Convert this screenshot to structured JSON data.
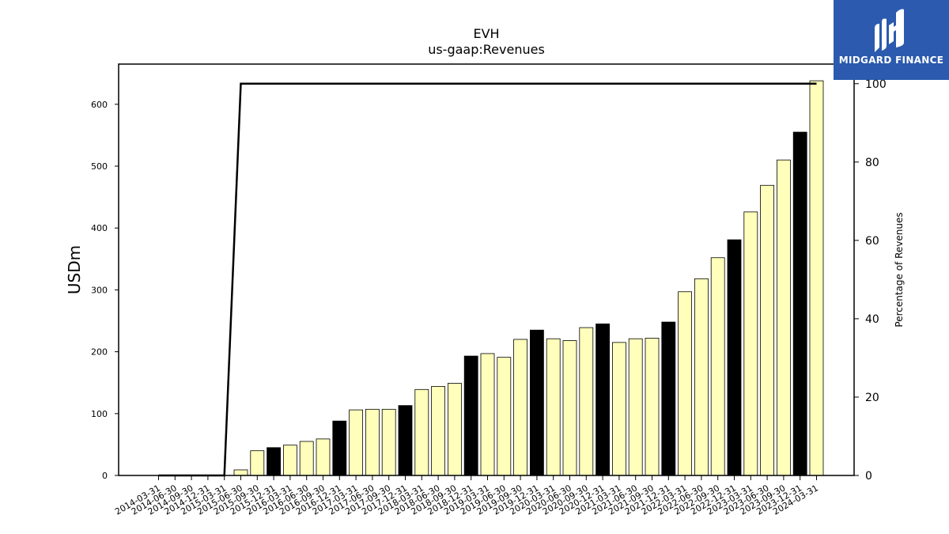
{
  "chart_data": {
    "type": "bar",
    "title": "EVH",
    "subtitle": "us-gaap:Revenues",
    "ylabel": "USDm",
    "y2label": "Percentage of Revenues",
    "ylim": [
      0,
      665
    ],
    "y2lim": [
      0,
      105
    ],
    "yticks": [
      0,
      100,
      200,
      300,
      400,
      500,
      600
    ],
    "y2ticks": [
      0,
      20,
      40,
      60,
      80,
      100
    ],
    "categories": [
      "2014-03-31",
      "2014-06-30",
      "2014-09-30",
      "2014-12-31",
      "2015-03-31",
      "2015-06-30",
      "2015-09-30",
      "2015-12-31",
      "2016-03-31",
      "2016-06-30",
      "2016-09-30",
      "2016-12-31",
      "2017-03-31",
      "2017-06-30",
      "2017-09-30",
      "2017-12-31",
      "2018-03-31",
      "2018-06-30",
      "2018-09-30",
      "2018-12-31",
      "2019-03-31",
      "2019-06-30",
      "2019-09-30",
      "2019-12-31",
      "2020-03-31",
      "2020-06-30",
      "2020-09-30",
      "2020-12-31",
      "2021-03-31",
      "2021-06-30",
      "2021-09-30",
      "2021-12-31",
      "2022-03-31",
      "2022-06-30",
      "2022-09-30",
      "2022-12-31",
      "2023-03-31",
      "2023-06-30",
      "2023-09-30",
      "2023-12-31",
      "2024-03-31"
    ],
    "series": [
      {
        "type": "bar",
        "values": [
          0,
          0,
          0,
          0,
          0,
          9,
          40,
          45,
          49,
          55,
          59,
          88,
          106,
          107,
          107,
          113,
          139,
          144,
          149,
          193,
          197,
          191,
          220,
          235,
          221,
          218,
          239,
          245,
          215,
          221,
          222,
          248,
          297,
          318,
          352,
          381,
          426,
          469,
          510,
          555,
          638
        ],
        "bar_colors": [
          "#ffffbb",
          "#ffffbb",
          "#ffffbb",
          "#000000",
          "#ffffbb",
          "#ffffbb",
          "#ffffbb",
          "#000000",
          "#ffffbb",
          "#ffffbb",
          "#ffffbb",
          "#000000",
          "#ffffbb",
          "#ffffbb",
          "#ffffbb",
          "#000000",
          "#ffffbb",
          "#ffffbb",
          "#ffffbb",
          "#000000",
          "#ffffbb",
          "#ffffbb",
          "#ffffbb",
          "#000000",
          "#ffffbb",
          "#ffffbb",
          "#ffffbb",
          "#000000",
          "#ffffbb",
          "#ffffbb",
          "#ffffbb",
          "#000000",
          "#ffffbb",
          "#ffffbb",
          "#ffffbb",
          "#000000",
          "#ffffbb",
          "#ffffbb",
          "#ffffbb",
          "#000000",
          "#ffffbb"
        ]
      },
      {
        "type": "line",
        "axis": "right",
        "color": "#000000",
        "values": [
          0,
          0,
          0,
          0,
          0,
          100,
          100,
          100,
          100,
          100,
          100,
          100,
          100,
          100,
          100,
          100,
          100,
          100,
          100,
          100,
          100,
          100,
          100,
          100,
          100,
          100,
          100,
          100,
          100,
          100,
          100,
          100,
          100,
          100,
          100,
          100,
          100,
          100,
          100,
          100,
          100
        ]
      }
    ],
    "grid": false,
    "legend": "none"
  },
  "logo": {
    "text": "MIDGARD FINANCE",
    "icon": "midgard-logo-icon",
    "background": "#2b5aae"
  }
}
